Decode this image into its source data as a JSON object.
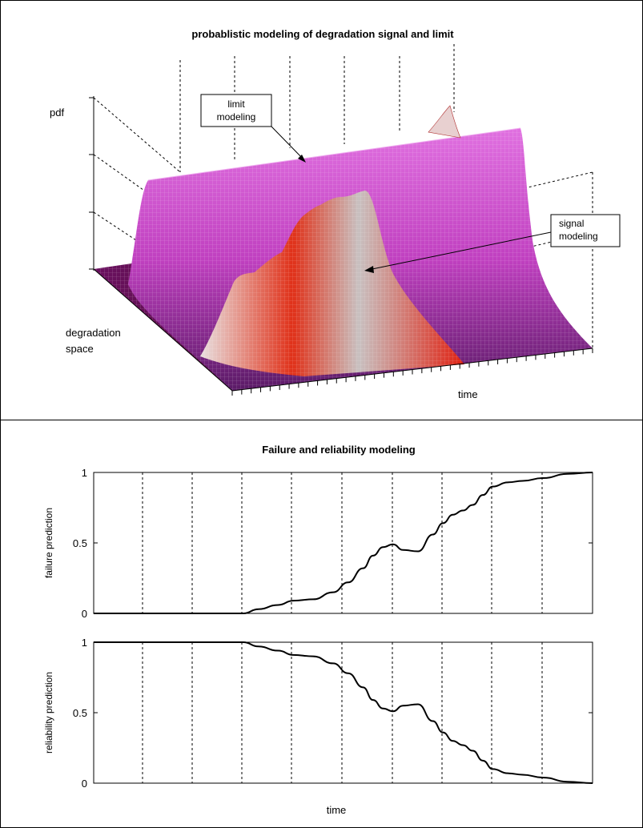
{
  "panel_top": {
    "title": "probablistic modeling of degradation signal and limit",
    "zlabel": "pdf",
    "ylabel_line1": "degradation",
    "ylabel_line2": "space",
    "xlabel": "time",
    "annotations": [
      {
        "line1": "limit",
        "line2": "modeling"
      },
      {
        "line1": "signal",
        "line2": "modeling"
      }
    ],
    "colors": {
      "limit_surface": "#c040c0",
      "signal_surface": "#e03018",
      "floor": "#5a1a5a"
    }
  },
  "panel_bottom": {
    "title": "Failure and reliability modeling",
    "xlabel": "time"
  },
  "chart_data": [
    {
      "type": "line",
      "title": "Failure and reliability modeling",
      "ylabel": "failure prediction",
      "xlabel": "",
      "ylim": [
        0,
        1
      ],
      "yticks": [
        "0",
        "0.5",
        "1"
      ],
      "grid": "vertical dashed",
      "x": [
        0,
        0.5,
        1,
        1.5,
        2,
        2.5,
        3,
        3.3,
        3.7,
        4,
        4.4,
        4.8,
        5.1,
        5.4,
        5.6,
        5.8,
        6.0,
        6.2,
        6.5,
        6.8,
        7.0,
        7.2,
        7.4,
        7.6,
        7.8,
        8.0,
        8.3,
        8.6,
        9,
        9.5,
        10
      ],
      "series": [
        {
          "values": [
            0,
            0,
            0,
            0,
            0,
            0,
            0,
            0.03,
            0.06,
            0.09,
            0.1,
            0.15,
            0.22,
            0.32,
            0.41,
            0.47,
            0.49,
            0.45,
            0.44,
            0.56,
            0.64,
            0.7,
            0.73,
            0.77,
            0.84,
            0.9,
            0.93,
            0.94,
            0.96,
            0.99,
            1.0
          ]
        }
      ]
    },
    {
      "type": "line",
      "title": "",
      "ylabel": "reliability prediction",
      "xlabel": "time",
      "ylim": [
        0,
        1
      ],
      "yticks": [
        "0",
        "0.5",
        "1"
      ],
      "grid": "vertical dashed",
      "x": [
        0,
        0.5,
        1,
        1.5,
        2,
        2.5,
        3,
        3.3,
        3.7,
        4,
        4.4,
        4.8,
        5.1,
        5.4,
        5.6,
        5.8,
        6.0,
        6.2,
        6.5,
        6.8,
        7.0,
        7.2,
        7.4,
        7.6,
        7.8,
        8.0,
        8.3,
        8.6,
        9,
        9.5,
        10
      ],
      "series": [
        {
          "values": [
            1,
            1,
            1,
            1,
            1,
            1,
            1,
            0.97,
            0.94,
            0.91,
            0.9,
            0.85,
            0.78,
            0.68,
            0.59,
            0.53,
            0.51,
            0.55,
            0.56,
            0.44,
            0.36,
            0.3,
            0.27,
            0.23,
            0.16,
            0.1,
            0.07,
            0.06,
            0.04,
            0.01,
            0.0
          ]
        }
      ]
    }
  ]
}
